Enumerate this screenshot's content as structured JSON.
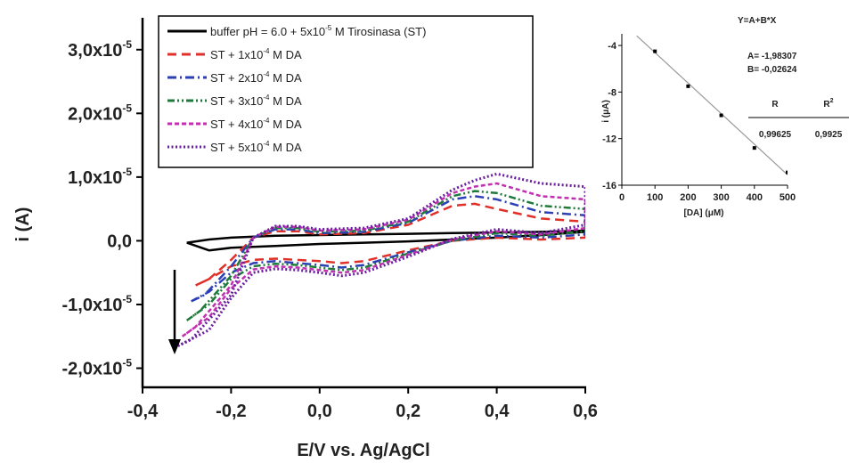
{
  "chart_data": [
    {
      "type": "line",
      "xlabel": "E/V vs. Ag/AgCl",
      "ylabel": "i (A)",
      "xlim": [
        -0.4,
        0.6
      ],
      "ylim": [
        -2.3e-05,
        3.5e-05
      ],
      "x_ticks": [
        {
          "value": -0.4,
          "label": "-0,4"
        },
        {
          "value": -0.2,
          "label": "-0,2"
        },
        {
          "value": 0.0,
          "label": "0,0"
        },
        {
          "value": 0.2,
          "label": "0,2"
        },
        {
          "value": 0.4,
          "label": "0,4"
        },
        {
          "value": 0.6,
          "label": "0,6"
        }
      ],
      "y_ticks": [
        {
          "value": 3e-05,
          "mantissa": "3,0x10",
          "exp": "-5"
        },
        {
          "value": 2e-05,
          "mantissa": "2,0x10",
          "exp": "-5"
        },
        {
          "value": 1e-05,
          "mantissa": "1,0x10",
          "exp": "-5"
        },
        {
          "value": 0.0,
          "mantissa": "0,0",
          "exp": ""
        },
        {
          "value": -1e-05,
          "mantissa": "-1,0x10",
          "exp": "-5"
        },
        {
          "value": -2e-05,
          "mantissa": "-2,0x10",
          "exp": "-5"
        }
      ],
      "legend_position": "top-center",
      "annotation": "downward arrow near E = -0,33 V indicating decreasing reduction current with increasing DA",
      "series": [
        {
          "name_parts": [
            "buffer pH = 6.0 + 5x10",
            "-5",
            " M Tirosinasa (ST)"
          ],
          "color": "#000000",
          "style": "solid",
          "x": [
            -0.3,
            -0.25,
            -0.2,
            -0.1,
            0.0,
            0.1,
            0.2,
            0.3,
            0.4,
            0.5,
            0.6,
            0.6,
            0.5,
            0.4,
            0.3,
            0.2,
            0.1,
            0.0,
            -0.1,
            -0.2,
            -0.25,
            -0.3
          ],
          "y": [
            -3e-07,
            2e-07,
            5e-07,
            8e-07,
            9e-07,
            1e-06,
            1.1e-06,
            1.2e-06,
            1.3e-06,
            1.4e-06,
            1.6e-06,
            1.4e-06,
            9e-07,
            5e-07,
            2e-07,
            -1e-07,
            -3e-07,
            -5e-07,
            -8e-07,
            -1.1e-06,
            -1.5e-06,
            -3e-07
          ]
        },
        {
          "name_parts": [
            "ST + 1x10",
            "-4",
            " M DA"
          ],
          "color": "#e0302a",
          "style": "dash",
          "x": [
            -0.28,
            -0.25,
            -0.2,
            -0.15,
            -0.1,
            -0.05,
            0.0,
            0.1,
            0.2,
            0.3,
            0.35,
            0.4,
            0.5,
            0.6,
            0.6,
            0.5,
            0.4,
            0.3,
            0.2,
            0.1,
            0.05,
            0.0,
            -0.05,
            -0.1,
            -0.15,
            -0.2,
            -0.25,
            -0.28
          ],
          "y": [
            -7e-06,
            -6e-06,
            -3e-06,
            5e-07,
            1.5e-06,
            1.5e-06,
            1e-06,
            1.2e-06,
            2.5e-06,
            5.5e-06,
            5.8e-06,
            5e-06,
            3.5e-06,
            3e-06,
            5e-07,
            2e-07,
            5e-07,
            0.0,
            -1.5e-06,
            -3.2e-06,
            -3.5e-06,
            -3.2e-06,
            -3e-06,
            -2.8e-06,
            -3e-06,
            -4e-06,
            -6e-06,
            -7e-06
          ]
        },
        {
          "name_parts": [
            "ST + 2x10",
            "-4",
            " M DA"
          ],
          "color": "#2c3fb5",
          "style": "dashdot",
          "x": [
            -0.29,
            -0.26,
            -0.2,
            -0.15,
            -0.1,
            -0.05,
            0.0,
            0.1,
            0.2,
            0.3,
            0.35,
            0.4,
            0.5,
            0.6,
            0.6,
            0.5,
            0.4,
            0.3,
            0.2,
            0.1,
            0.05,
            0.0,
            -0.05,
            -0.1,
            -0.15,
            -0.2,
            -0.25,
            -0.29
          ],
          "y": [
            -9.5e-06,
            -8.5e-06,
            -4e-06,
            5e-07,
            1.8e-06,
            1.8e-06,
            1.2e-06,
            1.4e-06,
            2.8e-06,
            6.5e-06,
            7e-06,
            6.5e-06,
            4.5e-06,
            4e-06,
            1e-06,
            5e-07,
            8e-07,
            0.0,
            -1.8e-06,
            -3.8e-06,
            -4.2e-06,
            -3.8e-06,
            -3.5e-06,
            -3.2e-06,
            -3.5e-06,
            -5e-06,
            -8e-06,
            -9.5e-06
          ]
        },
        {
          "name_parts": [
            "ST + 3x10",
            "-4",
            " M DA"
          ],
          "color": "#1e7a3a",
          "style": "dashdotdot",
          "x": [
            -0.3,
            -0.27,
            -0.2,
            -0.15,
            -0.1,
            -0.05,
            0.0,
            0.1,
            0.2,
            0.3,
            0.35,
            0.4,
            0.5,
            0.6,
            0.6,
            0.5,
            0.4,
            0.3,
            0.2,
            0.1,
            0.05,
            0.0,
            -0.05,
            -0.1,
            -0.15,
            -0.2,
            -0.25,
            -0.3
          ],
          "y": [
            -1.25e-05,
            -1.1e-05,
            -5.5e-06,
            5e-07,
            2e-06,
            2e-06,
            1.4e-06,
            1.6e-06,
            3e-06,
            7e-06,
            7.8e-06,
            7.5e-06,
            5.5e-06,
            5e-06,
            1.5e-06,
            8e-07,
            1.2e-06,
            0.0,
            -2e-06,
            -4.2e-06,
            -4.6e-06,
            -4.2e-06,
            -3.8e-06,
            -3.6e-06,
            -4e-06,
            -6e-06,
            -1e-05,
            -1.25e-05
          ]
        },
        {
          "name_parts": [
            "ST + 4x10",
            "-4",
            " M DA"
          ],
          "color": "#c030b0",
          "style": "shortdash",
          "x": [
            -0.31,
            -0.28,
            -0.2,
            -0.15,
            -0.1,
            -0.05,
            0.0,
            0.1,
            0.2,
            0.3,
            0.35,
            0.4,
            0.5,
            0.6,
            0.6,
            0.5,
            0.4,
            0.3,
            0.2,
            0.1,
            0.05,
            0.0,
            -0.05,
            -0.1,
            -0.15,
            -0.2,
            -0.25,
            -0.31
          ],
          "y": [
            -1.5e-05,
            -1.35e-05,
            -7e-06,
            5e-07,
            2.2e-06,
            2.2e-06,
            1.6e-06,
            1.8e-06,
            3.3e-06,
            7.5e-06,
            8.5e-06,
            9e-06,
            7e-06,
            6.5e-06,
            2e-06,
            1e-06,
            1.5e-06,
            2e-07,
            -2.2e-06,
            -4.6e-06,
            -5e-06,
            -4.6e-06,
            -4.2e-06,
            -4e-06,
            -4.5e-06,
            -7.5e-06,
            -1.2e-05,
            -1.5e-05
          ]
        },
        {
          "name_parts": [
            "ST + 5x10",
            "-4",
            " M DA"
          ],
          "color": "#6a1fa0",
          "style": "dot",
          "x": [
            -0.32,
            -0.29,
            -0.2,
            -0.15,
            -0.1,
            -0.05,
            0.0,
            0.1,
            0.2,
            0.3,
            0.35,
            0.4,
            0.5,
            0.6,
            0.6,
            0.5,
            0.4,
            0.3,
            0.2,
            0.1,
            0.05,
            0.0,
            -0.05,
            -0.1,
            -0.15,
            -0.2,
            -0.25,
            -0.32
          ],
          "y": [
            -1.65e-05,
            -1.55e-05,
            -8.5e-06,
            5e-07,
            2.3e-06,
            2.3e-06,
            1.8e-06,
            2e-06,
            3.5e-06,
            8e-06,
            9.5e-06,
            1.05e-05,
            9e-06,
            8.5e-06,
            2.5e-06,
            1.2e-06,
            1.8e-06,
            3e-07,
            -2.5e-06,
            -5e-06,
            -5.5e-06,
            -5e-06,
            -4.6e-06,
            -4.4e-06,
            -5e-06,
            -9e-06,
            -1.4e-05,
            -1.65e-05
          ]
        }
      ]
    },
    {
      "type": "scatter",
      "xlabel_parts": [
        "[DA] (",
        "μ",
        "M)"
      ],
      "ylabel_parts": [
        "i (",
        "μ",
        "A)"
      ],
      "xlim": [
        0,
        500
      ],
      "ylim": [
        -16,
        -3
      ],
      "x_ticks": [
        0,
        100,
        200,
        300,
        400,
        500
      ],
      "y_ticks": [
        -4,
        -8,
        -12,
        -16
      ],
      "points": {
        "x": [
          100,
          200,
          300,
          400,
          500
        ],
        "y": [
          -4.5,
          -7.5,
          -10.0,
          -12.8,
          -14.9
        ]
      },
      "fit": {
        "equation": "Y=A+B*X",
        "A_label": "A= -1,98307",
        "B_label": "B= -0,02624",
        "A": -1.98307,
        "B": -0.02624,
        "headers": [
          "R",
          "R"
        ],
        "r2_sup": "2",
        "values": [
          "0,99625",
          "0,9925"
        ]
      }
    }
  ]
}
